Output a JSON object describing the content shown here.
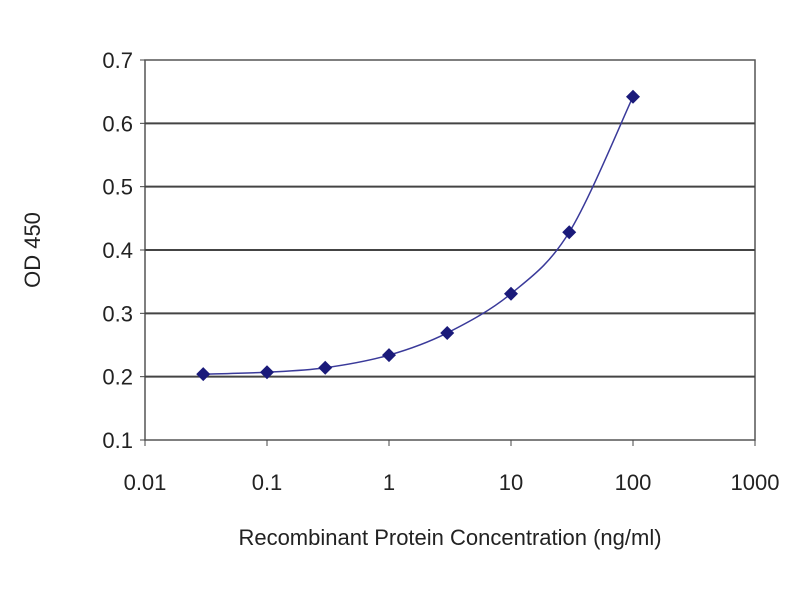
{
  "chart_data": {
    "type": "line",
    "title": "",
    "xlabel": "Recombinant Protein Concentration (ng/ml)",
    "ylabel": "OD 450",
    "x_scale": "log",
    "xlim": [
      0.01,
      1000
    ],
    "ylim": [
      0.1,
      0.7
    ],
    "x_ticks": [
      "0.01",
      "0.1",
      "1",
      "10",
      "100",
      "1000"
    ],
    "y_ticks": [
      "0.1",
      "0.2",
      "0.3",
      "0.4",
      "0.5",
      "0.6",
      "0.7"
    ],
    "grid": "horizontal",
    "legend": "none",
    "series": [
      {
        "x": [
          0.03,
          0.1,
          0.3,
          1,
          3,
          10,
          30,
          100
        ],
        "y": [
          0.204,
          0.207,
          0.214,
          0.234,
          0.269,
          0.331,
          0.428,
          0.642
        ],
        "color": "#1a1a7a",
        "marker": "diamond"
      }
    ]
  }
}
